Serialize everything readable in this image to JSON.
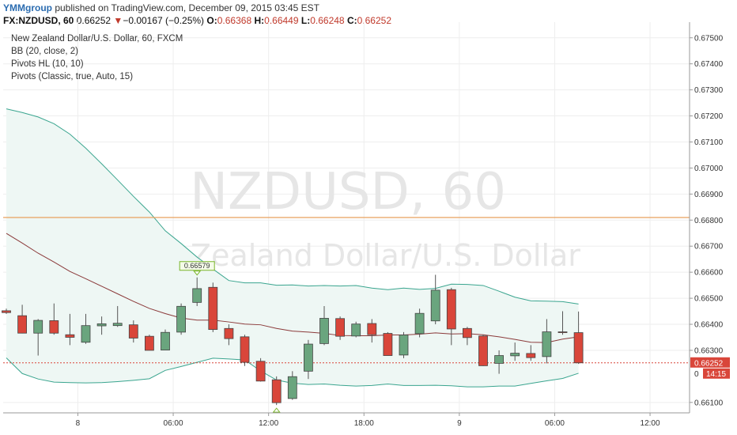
{
  "header": {
    "author": "YMMgroup",
    "published_text": " published on TradingView.com, December 09, 2015 03:45 EST",
    "symbol": "FX:NZDUSD, 60",
    "last": "0.66252",
    "change_arrow": "▼",
    "change": "−0.00167 (−0.25%)",
    "o_label": "O:",
    "o_val": "0.66368",
    "h_label": "H:",
    "h_val": "0.66449",
    "l_label": "L:",
    "l_val": "0.66248",
    "c_label": "C:",
    "c_val": "0.66252"
  },
  "legend": {
    "title": "New Zealand Dollar/U.S. Dollar, 60, FXCM",
    "indicators": [
      "BB (20, close, 2)",
      "Pivots HL (10, 10)",
      "Pivots (Classic, true, Auto, 15)"
    ]
  },
  "watermark": {
    "line1": "NZDUSD, 60",
    "line2": "New Zealand Dollar/U.S. Dollar"
  },
  "colors": {
    "up": "#6aa57e",
    "down": "#d9463a",
    "bb_band": "#3aa58f",
    "bb_fill": "#eef7f4",
    "bb_basis": "#8b3a3a",
    "pivot_line": "#e8a15d",
    "last_price": "#d9463a",
    "grid": "#eeeeee"
  },
  "chart_data": {
    "type": "candlestick",
    "ylim": [
      0.6606,
      0.6756
    ],
    "y_ticks": [
      "0.67500",
      "0.67400",
      "0.67300",
      "0.67200",
      "0.67100",
      "0.67000",
      "0.66900",
      "0.66800",
      "0.66700",
      "0.66600",
      "0.66500",
      "0.66400",
      "0.66300",
      "0.66100"
    ],
    "x_ticks": [
      {
        "label": "8",
        "index": 4.5
      },
      {
        "label": "06:00",
        "index": 10.5
      },
      {
        "label": "12:00",
        "index": 16.5
      },
      {
        "label": "18:00",
        "index": 22.5
      },
      {
        "label": "9",
        "index": 28.5
      },
      {
        "label": "06:00",
        "index": 34.5
      },
      {
        "label": "12:00",
        "index": 40.5
      }
    ],
    "candles": [
      {
        "o": 0.66452,
        "h": 0.6646,
        "l": 0.6644,
        "c": 0.66445
      },
      {
        "o": 0.66433,
        "h": 0.66475,
        "l": 0.66365,
        "c": 0.66366
      },
      {
        "o": 0.66366,
        "h": 0.6642,
        "l": 0.6628,
        "c": 0.66415
      },
      {
        "o": 0.66414,
        "h": 0.6648,
        "l": 0.6636,
        "c": 0.66366
      },
      {
        "o": 0.6636,
        "h": 0.6644,
        "l": 0.6632,
        "c": 0.6635
      },
      {
        "o": 0.66331,
        "h": 0.6644,
        "l": 0.66325,
        "c": 0.66395
      },
      {
        "o": 0.66394,
        "h": 0.6643,
        "l": 0.6636,
        "c": 0.66402
      },
      {
        "o": 0.66395,
        "h": 0.6647,
        "l": 0.6639,
        "c": 0.66404
      },
      {
        "o": 0.66398,
        "h": 0.66415,
        "l": 0.6633,
        "c": 0.66347
      },
      {
        "o": 0.66354,
        "h": 0.6636,
        "l": 0.663,
        "c": 0.663
      },
      {
        "o": 0.66301,
        "h": 0.6638,
        "l": 0.663,
        "c": 0.66369
      },
      {
        "o": 0.6637,
        "h": 0.6648,
        "l": 0.6636,
        "c": 0.66469
      },
      {
        "o": 0.66484,
        "h": 0.6658,
        "l": 0.6647,
        "c": 0.66537
      },
      {
        "o": 0.66542,
        "h": 0.6656,
        "l": 0.6637,
        "c": 0.6638
      },
      {
        "o": 0.66384,
        "h": 0.664,
        "l": 0.6632,
        "c": 0.66345
      },
      {
        "o": 0.66352,
        "h": 0.6636,
        "l": 0.6624,
        "c": 0.66254
      },
      {
        "o": 0.66258,
        "h": 0.6627,
        "l": 0.6618,
        "c": 0.66182
      },
      {
        "o": 0.66187,
        "h": 0.662,
        "l": 0.6609,
        "c": 0.66099
      },
      {
        "o": 0.66115,
        "h": 0.6622,
        "l": 0.6611,
        "c": 0.66199
      },
      {
        "o": 0.6622,
        "h": 0.6634,
        "l": 0.6619,
        "c": 0.66324
      },
      {
        "o": 0.66326,
        "h": 0.6647,
        "l": 0.6632,
        "c": 0.66423
      },
      {
        "o": 0.66422,
        "h": 0.6643,
        "l": 0.6634,
        "c": 0.66354
      },
      {
        "o": 0.66355,
        "h": 0.6641,
        "l": 0.6635,
        "c": 0.66401
      },
      {
        "o": 0.66403,
        "h": 0.6642,
        "l": 0.6633,
        "c": 0.6636
      },
      {
        "o": 0.66365,
        "h": 0.6637,
        "l": 0.6628,
        "c": 0.6628
      },
      {
        "o": 0.66282,
        "h": 0.6637,
        "l": 0.6627,
        "c": 0.66359
      },
      {
        "o": 0.66364,
        "h": 0.6646,
        "l": 0.6635,
        "c": 0.66442
      },
      {
        "o": 0.66413,
        "h": 0.6659,
        "l": 0.664,
        "c": 0.66531
      },
      {
        "o": 0.66533,
        "h": 0.6654,
        "l": 0.6632,
        "c": 0.66382
      },
      {
        "o": 0.66384,
        "h": 0.6639,
        "l": 0.6632,
        "c": 0.66349
      },
      {
        "o": 0.66355,
        "h": 0.6636,
        "l": 0.6624,
        "c": 0.66241
      },
      {
        "o": 0.6625,
        "h": 0.663,
        "l": 0.6621,
        "c": 0.6628
      },
      {
        "o": 0.66279,
        "h": 0.6633,
        "l": 0.6626,
        "c": 0.66289
      },
      {
        "o": 0.66288,
        "h": 0.6632,
        "l": 0.6626,
        "c": 0.66272
      },
      {
        "o": 0.66276,
        "h": 0.6642,
        "l": 0.6625,
        "c": 0.66371
      },
      {
        "o": 0.66371,
        "h": 0.6645,
        "l": 0.6636,
        "c": 0.66368
      },
      {
        "o": 0.66368,
        "h": 0.66449,
        "l": 0.66248,
        "c": 0.66252
      }
    ],
    "bb_upper": [
      0.67227,
      0.67213,
      0.67196,
      0.6717,
      0.6713,
      0.67076,
      0.67016,
      0.66954,
      0.66891,
      0.66831,
      0.66759,
      0.6671,
      0.66658,
      0.66612,
      0.66568,
      0.66559,
      0.66559,
      0.6655,
      0.66551,
      0.66547,
      0.66549,
      0.66547,
      0.66549,
      0.66539,
      0.66533,
      0.66539,
      0.66534,
      0.66538,
      0.66554,
      0.66553,
      0.66549,
      0.66527,
      0.66504,
      0.6649,
      0.66489,
      0.66487,
      0.66478
    ],
    "bb_basis": [
      0.66749,
      0.66712,
      0.66673,
      0.66639,
      0.66603,
      0.66575,
      0.66546,
      0.66517,
      0.66488,
      0.66461,
      0.66441,
      0.66424,
      0.66416,
      0.66416,
      0.66409,
      0.66401,
      0.66398,
      0.66384,
      0.66374,
      0.6637,
      0.66365,
      0.66357,
      0.66356,
      0.66356,
      0.66359,
      0.66359,
      0.66362,
      0.66367,
      0.66363,
      0.66364,
      0.6636,
      0.66352,
      0.66342,
      0.66331,
      0.6633,
      0.66343,
      0.66352
    ],
    "bb_lower": [
      0.66271,
      0.66211,
      0.6619,
      0.66178,
      0.66176,
      0.66175,
      0.66176,
      0.6618,
      0.66185,
      0.66191,
      0.66223,
      0.66238,
      0.66254,
      0.6627,
      0.66267,
      0.66263,
      0.66221,
      0.66186,
      0.66174,
      0.66169,
      0.66171,
      0.66166,
      0.66163,
      0.66165,
      0.66171,
      0.66165,
      0.66165,
      0.66166,
      0.66164,
      0.6616,
      0.6616,
      0.66163,
      0.66163,
      0.66173,
      0.66183,
      0.66192,
      0.66212
    ],
    "pivot_level": 0.6681,
    "pivot_high_label": "0.66579",
    "pivot_high_index": 12,
    "pivot_low_index": 17,
    "last_price": "0.66252",
    "countdown": "14:15",
    "partial_price_label": "0"
  }
}
